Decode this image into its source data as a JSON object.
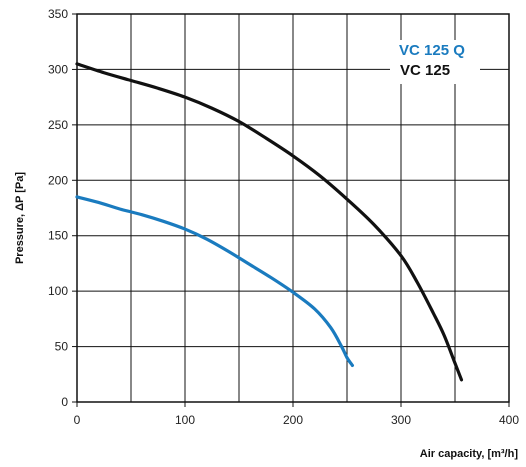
{
  "chart_data": {
    "type": "line",
    "xlabel": "Air capacity, [m³/h]",
    "ylabel": "Pressure, ΔP [Pa]",
    "xlim": [
      0,
      400
    ],
    "ylim": [
      0,
      350
    ],
    "xticks": [
      "0",
      "100",
      "200",
      "300",
      "400"
    ],
    "yticks": [
      "0",
      "50",
      "100",
      "150",
      "200",
      "250",
      "300",
      "350"
    ],
    "grid": true,
    "legend_position": "top-right",
    "series": [
      {
        "name": "VC 125 Q",
        "color": "#1a7bbf",
        "x": [
          0,
          20,
          40,
          60,
          80,
          100,
          120,
          140,
          160,
          180,
          200,
          220,
          235,
          245,
          250,
          255
        ],
        "y": [
          185,
          180,
          174,
          169,
          163,
          156,
          147,
          136,
          124,
          112,
          99,
          84,
          67,
          50,
          40,
          33
        ]
      },
      {
        "name": "VC 125",
        "color": "#111111",
        "x": [
          0,
          25,
          50,
          75,
          100,
          125,
          150,
          175,
          200,
          225,
          250,
          275,
          300,
          315,
          330,
          340,
          350,
          356
        ],
        "y": [
          305,
          297,
          290,
          283,
          275,
          265,
          253,
          238,
          222,
          204,
          183,
          160,
          132,
          108,
          80,
          60,
          35,
          20
        ]
      }
    ]
  }
}
